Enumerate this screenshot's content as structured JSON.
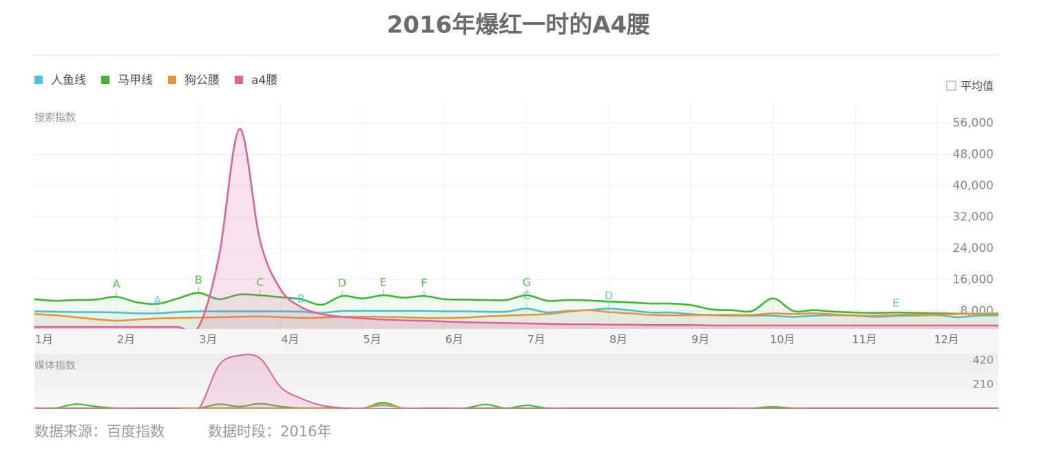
{
  "title": "2016年爆红一时的A4腰",
  "footer": {
    "source": "数据来源：百度指数",
    "period": "数据时段：2016年"
  },
  "chart_data": [
    {
      "type": "line",
      "ylabel": "搜索指数",
      "average_label": "平均值",
      "grid": true,
      "categories": [
        "1月",
        null,
        null,
        null,
        "2月",
        null,
        null,
        null,
        "3月",
        null,
        null,
        null,
        "4月",
        null,
        null,
        null,
        "5月",
        null,
        null,
        null,
        "6月",
        null,
        null,
        null,
        "7月",
        null,
        null,
        null,
        "8月",
        null,
        null,
        null,
        "9月",
        null,
        null,
        null,
        "10月",
        null,
        null,
        null,
        "11月",
        null,
        null,
        null,
        "12月",
        null,
        null,
        null
      ],
      "ylim": [
        3400,
        60200
      ],
      "yticks": [
        {
          "value": 8000,
          "label": "8,000"
        },
        {
          "value": 16000,
          "label": "16,000"
        },
        {
          "value": 24000,
          "label": "24,000"
        },
        {
          "value": 32000,
          "label": "32,000"
        },
        {
          "value": 40000,
          "label": "40,000"
        },
        {
          "value": 48000,
          "label": "48,000"
        },
        {
          "value": 56000,
          "label": "56,000"
        }
      ],
      "series": [
        {
          "name": "人鱼线",
          "color": "#4fc1d9",
          "values": [
            7900,
            7800,
            7700,
            7700,
            7600,
            7400,
            7400,
            7700,
            7900,
            7900,
            7900,
            7900,
            7900,
            7800,
            7500,
            8000,
            8000,
            8000,
            8000,
            8000,
            7900,
            7900,
            7800,
            7800,
            8600,
            7600,
            8000,
            8200,
            8600,
            8200,
            7600,
            7600,
            7200,
            6900,
            6800,
            6800,
            6800,
            6500,
            6800,
            6900,
            6800,
            6500,
            6700,
            6800,
            6900,
            6400,
            6800,
            6900
          ]
        },
        {
          "name": "马甲线",
          "color": "#3cb832",
          "values": [
            11000,
            10600,
            10800,
            10900,
            11600,
            10200,
            9800,
            11200,
            12600,
            11000,
            12200,
            12000,
            11500,
            11000,
            9600,
            11800,
            11200,
            12000,
            11400,
            11800,
            11000,
            10900,
            10800,
            10800,
            12000,
            10600,
            10800,
            10700,
            10400,
            10200,
            9900,
            9900,
            9500,
            8400,
            8200,
            8000,
            11200,
            8000,
            8200,
            7800,
            7600,
            7500,
            7600,
            7500,
            7400,
            7300,
            7300,
            7300
          ]
        },
        {
          "name": "狗公腰",
          "color": "#e8923a",
          "values": [
            7200,
            6900,
            6400,
            5900,
            5500,
            5800,
            6100,
            6200,
            6300,
            6400,
            6500,
            6600,
            6400,
            6200,
            6300,
            6500,
            6500,
            6500,
            6400,
            6200,
            6200,
            6300,
            6600,
            6800,
            7000,
            7200,
            7800,
            8200,
            7700,
            7400,
            7000,
            6900,
            6900,
            7000,
            7000,
            7000,
            7400,
            7200,
            7400,
            7100,
            6900,
            6800,
            7000,
            7100,
            7000,
            7200,
            7300,
            7400
          ]
        },
        {
          "name": "a4腰",
          "color": "#e0609a",
          "values": [
            3900,
            3900,
            3900,
            3900,
            3900,
            3900,
            3900,
            3900,
            3900,
            22000,
            54500,
            26000,
            13500,
            9000,
            7200,
            6500,
            6100,
            5800,
            5600,
            5500,
            5300,
            5100,
            5000,
            4900,
            4800,
            4700,
            4600,
            4600,
            4500,
            4500,
            4400,
            4400,
            4400,
            4300,
            4300,
            4300,
            4300,
            4300,
            4300,
            4300,
            4300,
            4300,
            4300,
            4300,
            4300,
            4300,
            4300,
            4300
          ]
        }
      ],
      "annotations": [
        {
          "text": "A",
          "series": 1,
          "index": 4
        },
        {
          "text": "A",
          "series": 0,
          "index": 6
        },
        {
          "text": "B",
          "series": 1,
          "index": 8
        },
        {
          "text": "C",
          "series": 1,
          "index": 11
        },
        {
          "text": "B",
          "series": 0,
          "index": 13
        },
        {
          "text": "D",
          "series": 1,
          "index": 15
        },
        {
          "text": "E",
          "series": 1,
          "index": 17
        },
        {
          "text": "F",
          "series": 1,
          "index": 19
        },
        {
          "text": "G",
          "series": 1,
          "index": 24
        },
        {
          "text": "C",
          "series": 0,
          "index": 24
        },
        {
          "text": "D",
          "series": 0,
          "index": 28
        },
        {
          "text": "E",
          "series": 0,
          "index": 42
        }
      ]
    },
    {
      "type": "line",
      "ylabel": "媒体指数",
      "ylim": [
        0,
        480
      ],
      "yticks": [
        210,
        420
      ],
      "series": [
        {
          "color": "#4fc1d9",
          "values": [
            6,
            6,
            6,
            6,
            6,
            6,
            6,
            6,
            6,
            6,
            6,
            6,
            6,
            6,
            6,
            6,
            6,
            30,
            6,
            6,
            6,
            6,
            6,
            6,
            6,
            6,
            6,
            6,
            6,
            6,
            6,
            6,
            6,
            6,
            6,
            6,
            6,
            6,
            6,
            6,
            6,
            6,
            6,
            6,
            6,
            6,
            6,
            6
          ]
        },
        {
          "color": "#3cb832",
          "values": [
            5,
            5,
            40,
            20,
            5,
            5,
            5,
            5,
            5,
            40,
            20,
            45,
            20,
            5,
            5,
            5,
            5,
            55,
            5,
            5,
            5,
            5,
            38,
            5,
            30,
            5,
            5,
            5,
            5,
            5,
            5,
            5,
            5,
            5,
            5,
            5,
            18,
            5,
            5,
            5,
            5,
            5,
            5,
            5,
            5,
            5,
            5,
            5
          ]
        },
        {
          "color": "#e8923a",
          "values": [
            4,
            4,
            4,
            4,
            4,
            4,
            4,
            4,
            4,
            4,
            4,
            4,
            4,
            4,
            4,
            4,
            4,
            45,
            4,
            4,
            4,
            4,
            4,
            4,
            4,
            4,
            4,
            4,
            4,
            4,
            4,
            4,
            4,
            4,
            4,
            4,
            4,
            4,
            4,
            4,
            4,
            4,
            4,
            4,
            4,
            4,
            4,
            4
          ]
        },
        {
          "color": "#e0609a",
          "values": [
            0,
            0,
            0,
            0,
            0,
            0,
            0,
            0,
            0,
            380,
            465,
            440,
            190,
            90,
            30,
            8,
            0,
            0,
            0,
            0,
            0,
            0,
            0,
            0,
            0,
            0,
            0,
            0,
            0,
            0,
            0,
            0,
            0,
            0,
            0,
            0,
            0,
            0,
            0,
            0,
            0,
            0,
            0,
            0,
            0,
            0,
            0,
            0
          ]
        }
      ]
    }
  ]
}
